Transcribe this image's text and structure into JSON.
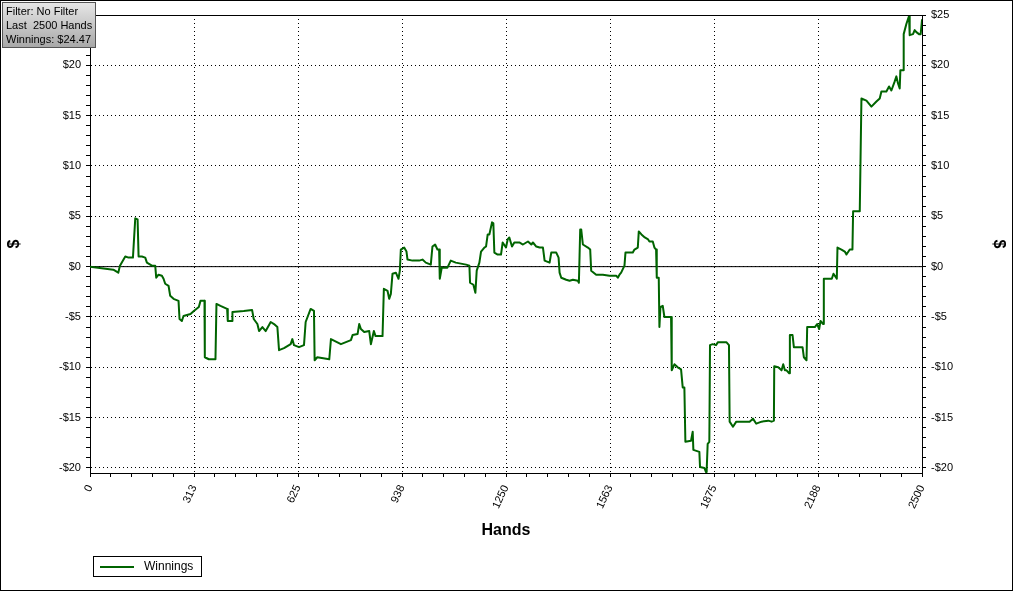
{
  "chart_data": {
    "type": "line",
    "xlabel": "Hands",
    "ylabel": "$",
    "y2label": "$",
    "annotations": [
      "Filter: No Filter",
      "Last  2500 Hands",
      "Winnings: $24.47"
    ],
    "x": [
      0,
      70,
      85,
      90,
      106,
      116,
      129,
      131,
      136,
      143,
      146,
      156,
      166,
      171,
      186,
      196,
      199,
      206,
      216,
      221,
      226,
      236,
      241,
      251,
      266,
      269,
      276,
      281,
      302,
      312,
      327,
      332,
      344,
      345,
      357,
      377,
      380,
      392,
      412,
      414,
      427,
      428,
      462,
      487,
      492,
      503,
      508,
      518,
      528,
      543,
      553,
      563,
      568,
      583,
      603,
      608,
      613,
      628,
      643,
      648,
      663,
      673,
      675,
      683,
      719,
      724,
      754,
      784,
      789,
      804,
      809,
      814,
      824,
      839,
      844,
      853,
      858,
      879,
      883,
      894,
      899,
      904,
      909,
      919,
      927,
      931,
      934,
      944,
      951,
      954,
      969,
      989,
      999,
      1009,
      1024,
      1029,
      1037,
      1044,
      1049,
      1051,
      1057,
      1074,
      1084,
      1099,
      1130,
      1140,
      1142,
      1152,
      1158,
      1162,
      1170,
      1175,
      1185,
      1190,
      1195,
      1200,
      1208,
      1212,
      1215,
      1225,
      1235,
      1240,
      1250,
      1255,
      1260,
      1268,
      1275,
      1290,
      1301,
      1316,
      1326,
      1331,
      1341,
      1351,
      1361,
      1366,
      1381,
      1386,
      1401,
      1408,
      1411,
      1416,
      1431,
      1441,
      1451,
      1466,
      1469,
      1473,
      1476,
      1481,
      1496,
      1503,
      1506,
      1521,
      1531,
      1541,
      1561,
      1581,
      1586,
      1591,
      1596,
      1606,
      1609,
      1621,
      1631,
      1636,
      1646,
      1649,
      1657,
      1667,
      1677,
      1681,
      1691,
      1696,
      1701,
      1703,
      1709,
      1711,
      1714,
      1721,
      1726,
      1746,
      1748,
      1756,
      1766,
      1776,
      1781,
      1786,
      1789,
      1806,
      1811,
      1813,
      1831,
      1833,
      1846,
      1851,
      1853,
      1856,
      1861,
      1863,
      1871,
      1881,
      1887,
      1912,
      1920,
      1922,
      1932,
      1942,
      1957,
      1982,
      1992,
      2002,
      2018,
      2038,
      2048,
      2055,
      2056,
      2068,
      2078,
      2083,
      2088,
      2093,
      2101,
      2103,
      2111,
      2115,
      2141,
      2145,
      2153,
      2155,
      2178,
      2185,
      2191,
      2195,
      2203,
      2205,
      2213,
      2229,
      2234,
      2244,
      2246,
      2258,
      2268,
      2273,
      2283,
      2291,
      2293,
      2313,
      2318,
      2333,
      2348,
      2363,
      2373,
      2378,
      2393,
      2401,
      2408,
      2418,
      2423,
      2428,
      2433,
      2435,
      2443,
      2445,
      2453,
      2461,
      2463,
      2473,
      2478,
      2483,
      2491,
      2496,
      2500
    ],
    "series": [
      {
        "name": "Winnings",
        "color": "#006400",
        "values": [
          0,
          -0.3,
          -0.6,
          0.1,
          1.0,
          0.9,
          0.9,
          2.0,
          4.8,
          4.7,
          1.0,
          1.0,
          0.9,
          0.4,
          0.1,
          0.1,
          -1.1,
          -0.8,
          -0.9,
          -1.2,
          -1.7,
          -1.9,
          -2.9,
          -3.2,
          -3.4,
          -5.2,
          -5.4,
          -4.9,
          -4.7,
          -4.4,
          -4.0,
          -3.4,
          -3.4,
          -9.0,
          -9.2,
          -9.2,
          -3.7,
          -3.9,
          -4.2,
          -5.4,
          -5.4,
          -4.5,
          -4.4,
          -4.3,
          -5.2,
          -5.7,
          -6.4,
          -6.0,
          -6.4,
          -5.5,
          -5.7,
          -6.0,
          -8.3,
          -8.1,
          -7.7,
          -7.2,
          -7.8,
          -8.0,
          -7.8,
          -5.5,
          -4.2,
          -4.4,
          -9.3,
          -9.0,
          -9.2,
          -7.2,
          -7.7,
          -7.3,
          -6.8,
          -6.7,
          -5.7,
          -6.2,
          -6.5,
          -6.4,
          -7.7,
          -6.4,
          -6.9,
          -6.9,
          -2.2,
          -2.4,
          -3.2,
          -2.7,
          -0.7,
          -0.6,
          -1.2,
          -0.4,
          1.7,
          1.9,
          1.5,
          0.7,
          0.6,
          0.6,
          0.7,
          0.4,
          0.2,
          2.0,
          2.2,
          1.7,
          1.7,
          -1.2,
          -0.1,
          -0.1,
          0.6,
          0.4,
          0.2,
          0.1,
          -1.6,
          -1.8,
          -2.6,
          -0.4,
          0.4,
          1.5,
          1.9,
          2.0,
          3.2,
          3.2,
          4.4,
          4.3,
          1.4,
          1.2,
          1.2,
          2.4,
          1.9,
          2.7,
          2.9,
          2.0,
          2.4,
          2.4,
          2.2,
          2.5,
          2.2,
          2.4,
          2.0,
          1.9,
          1.9,
          0.6,
          0.4,
          1.4,
          1.4,
          0.9,
          -0.6,
          -1.1,
          -1.3,
          -1.4,
          -1.3,
          -1.4,
          -1.6,
          3.7,
          3.7,
          2.2,
          1.9,
          1.7,
          -0.4,
          -0.8,
          -0.8,
          -0.8,
          -0.9,
          -0.9,
          -1.1,
          -0.8,
          -0.6,
          0.1,
          1.4,
          1.4,
          1.4,
          1.7,
          1.9,
          3.5,
          3.2,
          2.9,
          2.7,
          2.5,
          2.5,
          1.9,
          1.7,
          -1.1,
          -1.1,
          -6.0,
          -4.0,
          -3.9,
          -5.0,
          -5.0,
          -10.3,
          -9.7,
          -10.0,
          -10.2,
          -12.0,
          -12.0,
          -17.4,
          -17.3,
          -16.4,
          -18.2,
          -18.4,
          -19.9,
          -20.0,
          -20.4,
          -20.2,
          -17.6,
          -17.4,
          -7.8,
          -7.7,
          -7.8,
          -7.5,
          -7.5,
          -7.8,
          -15.4,
          -15.9,
          -15.4,
          -15.4,
          -15.4,
          -15.1,
          -15.6,
          -15.4,
          -15.3,
          -15.4,
          -15.3,
          -9.9,
          -10.0,
          -10.3,
          -9.7,
          -10.3,
          -10.3,
          -10.6,
          -6.8,
          -6.8,
          -8.0,
          -8.0,
          -9.0,
          -9.3,
          -6.0,
          -6.0,
          -5.7,
          -6.2,
          -5.4,
          -5.7,
          -1.2,
          -1.2,
          -1.2,
          -0.7,
          -1.2,
          1.9,
          1.7,
          1.5,
          1.2,
          1.7,
          1.7,
          5.5,
          5.5,
          16.7,
          16.5,
          15.9,
          16.4,
          16.7,
          17.4,
          17.4,
          17.9,
          17.5,
          18.4,
          18.9,
          18.2,
          17.7,
          19.5,
          19.5,
          23.1,
          24.1,
          24.9,
          23.0,
          23.1,
          23.5,
          23.3,
          23.1,
          23.1,
          24.5
        ]
      }
    ],
    "xlim": [
      0,
      2500
    ],
    "xticks": [
      0,
      {
        "value": 62.5,
        "label": null
      },
      {
        "value": 125,
        "label": null
      },
      {
        "value": 187.5,
        "label": null
      },
      {
        "value": 250,
        "label": null
      },
      {
        "value": 312.5,
        "label": "313"
      },
      {
        "value": 375,
        "label": null
      },
      {
        "value": 437.5,
        "label": null
      },
      {
        "value": 500,
        "label": null
      },
      {
        "value": 562.5,
        "label": null
      },
      625,
      {
        "value": 687.5,
        "label": null
      },
      {
        "value": 750,
        "label": null
      },
      {
        "value": 812.5,
        "label": null
      },
      {
        "value": 875,
        "label": null
      },
      {
        "value": 937.5,
        "label": "938"
      },
      {
        "value": 1000,
        "label": null
      },
      {
        "value": 1062.5,
        "label": null
      },
      {
        "value": 1125,
        "label": null
      },
      {
        "value": 1187.5,
        "label": null
      },
      1250,
      {
        "value": 1312.5,
        "label": null
      },
      {
        "value": 1375,
        "label": null
      },
      {
        "value": 1437.5,
        "label": null
      },
      {
        "value": 1500,
        "label": null
      },
      {
        "value": 1562.5,
        "label": "1563"
      },
      {
        "value": 1625,
        "label": null
      },
      {
        "value": 1687.5,
        "label": null
      },
      {
        "value": 1750,
        "label": null
      },
      {
        "value": 1812.5,
        "label": null
      },
      1875,
      {
        "value": 1937.5,
        "label": null
      },
      {
        "value": 2000,
        "label": null
      },
      {
        "value": 2062.5,
        "label": null
      },
      {
        "value": 2125,
        "label": null
      },
      {
        "value": 2187.5,
        "label": "2188"
      },
      {
        "value": 2250,
        "label": null
      },
      {
        "value": 2312.5,
        "label": null
      },
      {
        "value": 2375,
        "label": null
      },
      {
        "value": 2437.5,
        "label": null
      },
      2500
    ],
    "ylim": [
      -20.5,
      25
    ],
    "yticks": [
      {
        "value": -20,
        "label": "-$20"
      },
      {
        "value": -19,
        "label": null
      },
      {
        "value": -18,
        "label": null
      },
      {
        "value": -17,
        "label": null
      },
      {
        "value": -16,
        "label": null
      },
      {
        "value": -15,
        "label": "-$15"
      },
      {
        "value": -14,
        "label": null
      },
      {
        "value": -13,
        "label": null
      },
      {
        "value": -12,
        "label": null
      },
      {
        "value": -11,
        "label": null
      },
      {
        "value": -10,
        "label": "-$10"
      },
      {
        "value": -9,
        "label": null
      },
      {
        "value": -8,
        "label": null
      },
      {
        "value": -7,
        "label": null
      },
      {
        "value": -6,
        "label": null
      },
      {
        "value": -5,
        "label": "-$5"
      },
      {
        "value": -4,
        "label": null
      },
      {
        "value": -3,
        "label": null
      },
      {
        "value": -2,
        "label": null
      },
      {
        "value": -1,
        "label": null
      },
      {
        "value": 0,
        "label": "$0"
      },
      {
        "value": 1,
        "label": null
      },
      {
        "value": 2,
        "label": null
      },
      {
        "value": 3,
        "label": null
      },
      {
        "value": 4,
        "label": null
      },
      {
        "value": 5,
        "label": "$5"
      },
      {
        "value": 6,
        "label": null
      },
      {
        "value": 7,
        "label": null
      },
      {
        "value": 8,
        "label": null
      },
      {
        "value": 9,
        "label": null
      },
      {
        "value": 10,
        "label": "$10"
      },
      {
        "value": 11,
        "label": null
      },
      {
        "value": 12,
        "label": null
      },
      {
        "value": 13,
        "label": null
      },
      {
        "value": 14,
        "label": null
      },
      {
        "value": 15,
        "label": "$15"
      },
      {
        "value": 16,
        "label": null
      },
      {
        "value": 17,
        "label": null
      },
      {
        "value": 18,
        "label": null
      },
      {
        "value": 19,
        "label": null
      },
      {
        "value": 20,
        "label": "$20"
      },
      {
        "value": 21,
        "label": null
      },
      {
        "value": 22,
        "label": null
      },
      {
        "value": 23,
        "label": null
      },
      {
        "value": 24,
        "label": null
      },
      {
        "value": 25,
        "label": null
      }
    ],
    "y2lim": [
      -20.5,
      25
    ],
    "y2ticks": [
      {
        "value": -20,
        "label": "-$20"
      },
      {
        "value": -19,
        "label": null
      },
      {
        "value": -18,
        "label": null
      },
      {
        "value": -17,
        "label": null
      },
      {
        "value": -16,
        "label": null
      },
      {
        "value": -15,
        "label": "-$15"
      },
      {
        "value": -14,
        "label": null
      },
      {
        "value": -13,
        "label": null
      },
      {
        "value": -12,
        "label": null
      },
      {
        "value": -11,
        "label": null
      },
      {
        "value": -10,
        "label": "-$10"
      },
      {
        "value": -9,
        "label": null
      },
      {
        "value": -8,
        "label": null
      },
      {
        "value": -7,
        "label": null
      },
      {
        "value": -6,
        "label": null
      },
      {
        "value": -5,
        "label": "-$5"
      },
      {
        "value": -4,
        "label": null
      },
      {
        "value": -3,
        "label": null
      },
      {
        "value": -2,
        "label": null
      },
      {
        "value": -1,
        "label": null
      },
      {
        "value": 0,
        "label": "$0"
      },
      {
        "value": 1,
        "label": null
      },
      {
        "value": 2,
        "label": null
      },
      {
        "value": 3,
        "label": null
      },
      {
        "value": 4,
        "label": null
      },
      {
        "value": 5,
        "label": "$5"
      },
      {
        "value": 6,
        "label": null
      },
      {
        "value": 7,
        "label": null
      },
      {
        "value": 8,
        "label": null
      },
      {
        "value": 9,
        "label": null
      },
      {
        "value": 10,
        "label": "$10"
      },
      {
        "value": 11,
        "label": null
      },
      {
        "value": 12,
        "label": null
      },
      {
        "value": 13,
        "label": null
      },
      {
        "value": 14,
        "label": null
      },
      {
        "value": 15,
        "label": "$15"
      },
      {
        "value": 16,
        "label": null
      },
      {
        "value": 17,
        "label": null
      },
      {
        "value": 18,
        "label": null
      },
      {
        "value": 19,
        "label": null
      },
      {
        "value": 20,
        "label": "$20"
      },
      {
        "value": 21,
        "label": null
      },
      {
        "value": 22,
        "label": null
      },
      {
        "value": 23,
        "label": null
      },
      {
        "value": 24,
        "label": null
      },
      {
        "value": 25,
        "label": "$25"
      }
    ],
    "ref_lines": [
      {
        "axis": "y",
        "value": 0,
        "color": "#000000"
      }
    ],
    "grid": true,
    "legend": "bottom left"
  }
}
